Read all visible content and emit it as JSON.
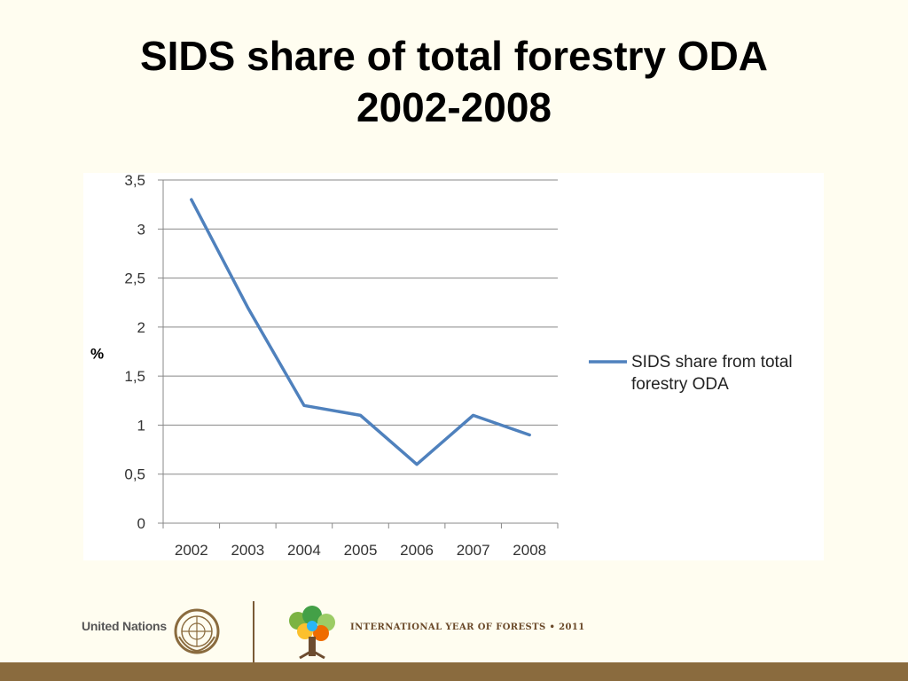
{
  "slide": {
    "title_line1": "SIDS share of total forestry ODA",
    "title_line2": "2002-2008"
  },
  "chart_data": {
    "type": "line",
    "title": "",
    "xlabel": "",
    "ylabel": "%",
    "categories": [
      "2002",
      "2003",
      "2004",
      "2005",
      "2006",
      "2007",
      "2008"
    ],
    "series": [
      {
        "name": "SIDS share from total forestry ODA",
        "values": [
          3.3,
          2.2,
          1.2,
          1.1,
          0.6,
          1.1,
          0.9
        ],
        "color": "#4f81bd"
      }
    ],
    "ylim": [
      0,
      3.5
    ],
    "yticks": [
      "0",
      "0,5",
      "1",
      "1,5",
      "2",
      "2,5",
      "3",
      "3,5"
    ],
    "grid": true,
    "legend_position": "right"
  },
  "footer": {
    "un_label": "United Nations",
    "iyf_text": "INTERNATIONAL YEAR OF FORESTS • 2011"
  },
  "colors": {
    "background": "#fffdf0",
    "line": "#4f81bd",
    "bottom_bar": "#8a6b3e"
  }
}
